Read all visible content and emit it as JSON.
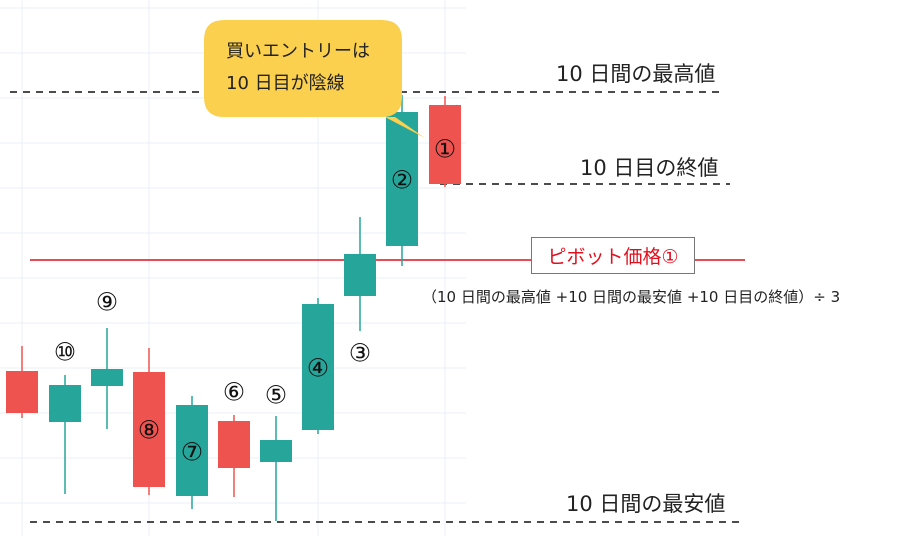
{
  "callout": {
    "line1": "買いエントリーは",
    "line2": "10 日目が陰線",
    "color": "#fcd04f"
  },
  "labels": {
    "high_10d": "10 日間の最高値",
    "close_day10": "10 日目の終値",
    "low_10d": "10 日間の最安値",
    "pivot": "ピボット価格①",
    "formula": "（10 日間の最高値 +10 日間の最安値 +10 日目の終値）÷ 3"
  },
  "candles": [
    {
      "label": "",
      "direction": "down"
    },
    {
      "label": "⑩",
      "direction": "up"
    },
    {
      "label": "⑨",
      "direction": "up"
    },
    {
      "label": "⑧",
      "direction": "down"
    },
    {
      "label": "⑦",
      "direction": "up"
    },
    {
      "label": "⑥",
      "direction": "down"
    },
    {
      "label": "⑤",
      "direction": "up"
    },
    {
      "label": "④",
      "direction": "up"
    },
    {
      "label": "③",
      "direction": "up"
    },
    {
      "label": "②",
      "direction": "up"
    },
    {
      "label": "①",
      "direction": "down"
    }
  ],
  "colors": {
    "up": "#26a69a",
    "down": "#ef5350",
    "pivot_line": "#e0101f",
    "grid": "#e8f0f4"
  }
}
